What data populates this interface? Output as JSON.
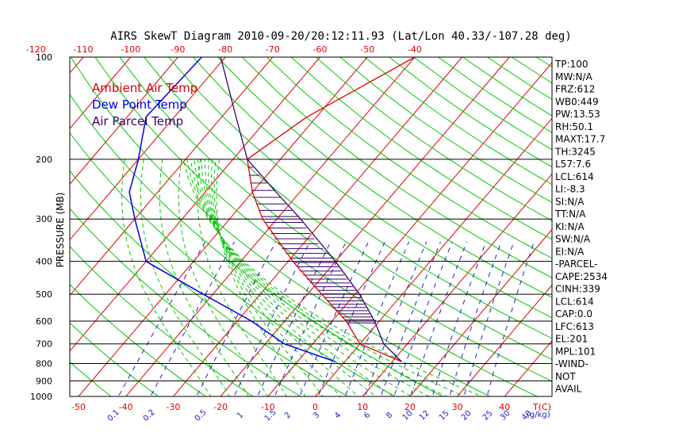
{
  "title": "AIRS SkewT Diagram 2010-09-20/20:12:11.93 (Lat/Lon 40.33/-107.28 deg)",
  "colors": {
    "ambient": "#e00000",
    "dewpoint": "#0000e0",
    "parcel": "#3a006e",
    "isotherm": "#e00000",
    "dry_adiabat": "#00c800",
    "moist_adiabat": "#00c800",
    "mixing_ratio": "#2020c0",
    "cape_hatch": "#3a006e"
  },
  "chart_data": {
    "type": "skewt",
    "ylabel": "PRESSURE (MB)",
    "xlabel": "T(C)",
    "pressure_ticks": [
      "100",
      "200",
      "300",
      "400",
      "500",
      "600",
      "700",
      "800",
      "900",
      "1000"
    ],
    "pressure_ticks_vals": [
      100,
      200,
      300,
      400,
      500,
      600,
      700,
      800,
      900,
      1000
    ],
    "top_temp_ticks": [
      "-120",
      "-110",
      "-100",
      "-90",
      "-80",
      "-70",
      "-60",
      "-50",
      "-40"
    ],
    "top_temp_vals": [
      -120,
      -110,
      -100,
      -90,
      -80,
      -70,
      -60,
      -50,
      -40
    ],
    "bottom_temp_ticks": [
      "-50",
      "-40",
      "-30",
      "-20",
      "-10",
      "0",
      "10",
      "20",
      "30",
      "40"
    ],
    "bottom_temp_vals": [
      -50,
      -40,
      -30,
      -20,
      -10,
      0,
      10,
      20,
      30,
      40
    ],
    "mixing_ratio_labels": [
      "0.1",
      "0.2",
      "0.5",
      "1",
      "1.5",
      "2",
      "3",
      "4",
      "6",
      "8",
      "10",
      "12",
      "15",
      "20",
      "25",
      "30",
      "40"
    ],
    "mixing_ratio_unit": "(g/kg)",
    "legend": [
      "Ambient Air Temp",
      "Dew Point Temp",
      "Air Parcel Temp"
    ],
    "series": [
      {
        "name": "Ambient Air Temp",
        "points": [
          [
            100,
            -40
          ],
          [
            150,
            -52
          ],
          [
            200,
            -57
          ],
          [
            250,
            -50
          ],
          [
            300,
            -43
          ],
          [
            400,
            -29
          ],
          [
            500,
            -17
          ],
          [
            600,
            -7
          ],
          [
            700,
            0
          ],
          [
            790,
            12
          ]
        ]
      },
      {
        "name": "Dew Point Temp",
        "points": [
          [
            100,
            -85
          ],
          [
            150,
            -86
          ],
          [
            200,
            -80
          ],
          [
            250,
            -76
          ],
          [
            300,
            -70
          ],
          [
            400,
            -60
          ],
          [
            500,
            -42
          ],
          [
            600,
            -27
          ],
          [
            700,
            -16
          ],
          [
            790,
            -2
          ]
        ]
      },
      {
        "name": "Air Parcel Temp",
        "points": [
          [
            100,
            -81
          ],
          [
            150,
            -67
          ],
          [
            200,
            -57
          ],
          [
            250,
            -45
          ],
          [
            300,
            -35
          ],
          [
            400,
            -20
          ],
          [
            500,
            -9
          ],
          [
            600,
            -1
          ],
          [
            700,
            5
          ],
          [
            790,
            12
          ]
        ]
      }
    ],
    "cape_region": {
      "from_pressure": 201,
      "to_pressure": 613
    }
  },
  "indices": [
    "TP:100",
    "MW:N/A",
    "FRZ:612",
    "WB0:449",
    "PW:13.53",
    "RH:50.1",
    "MAXT:17.7",
    "TH:3245",
    "L57:7.6",
    "LCL:614",
    "LI:-8.3",
    "SI:N/A",
    "TT:N/A",
    "KI:N/A",
    "SW:N/A",
    "EI:N/A",
    "-PARCEL-",
    "CAPE:2534",
    "CINH:339",
    "LCL:614",
    "CAP:0.0",
    "LFC:613",
    "EL:201",
    "MPL:101",
    "-WIND-",
    "NOT",
    "AVAIL"
  ]
}
